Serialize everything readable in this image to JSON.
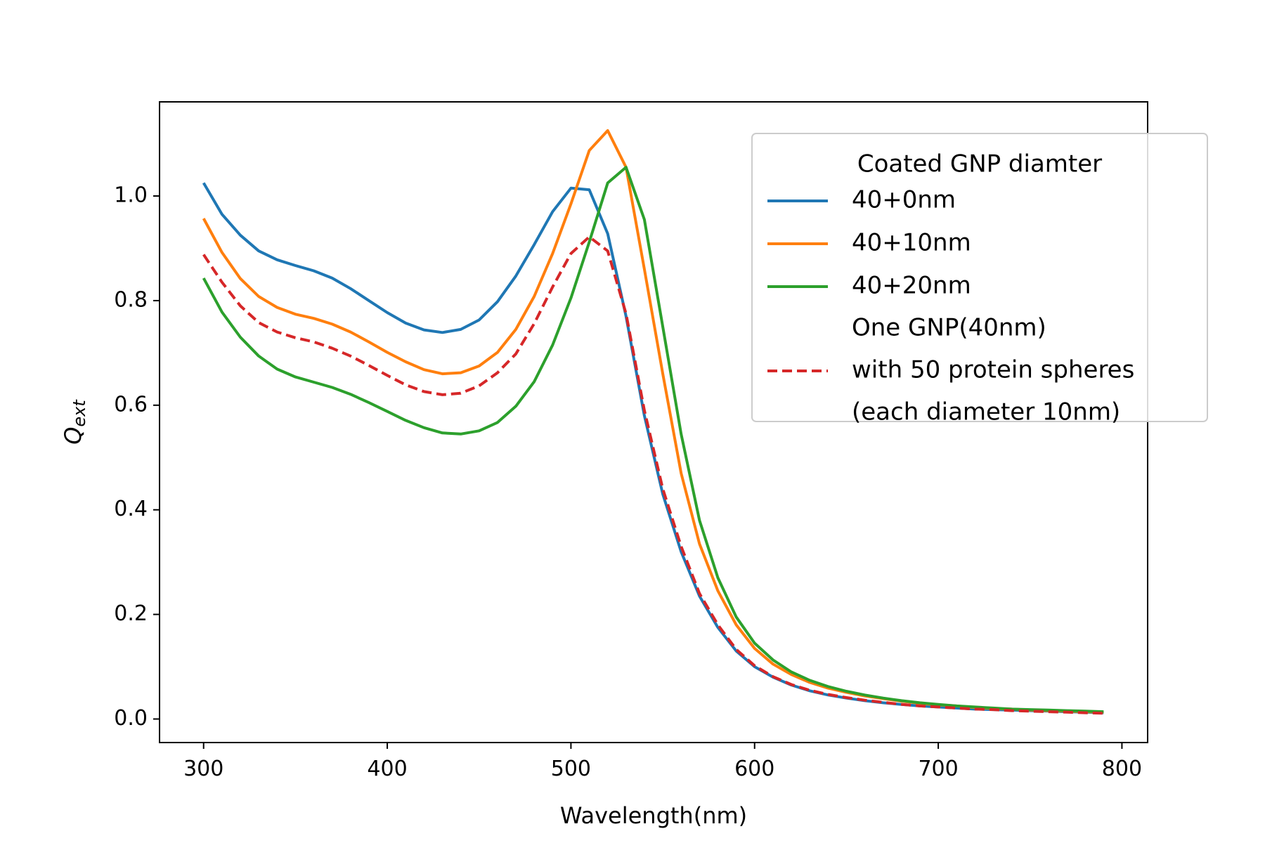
{
  "chart_data": {
    "type": "line",
    "title": "",
    "xlabel": "Wavelength(nm)",
    "ylabel_main": "Q",
    "ylabel_sub": "ext",
    "xlim": [
      276,
      814
    ],
    "ylim": [
      -0.045,
      1.18
    ],
    "xticks": [
      300,
      400,
      500,
      600,
      700,
      800
    ],
    "yticks": [
      0.0,
      0.2,
      0.4,
      0.6,
      0.8,
      1.0
    ],
    "xtick_labels": [
      "300",
      "400",
      "500",
      "600",
      "700",
      "800"
    ],
    "ytick_labels": [
      "0.0",
      "0.2",
      "0.4",
      "0.6",
      "0.8",
      "1.0"
    ],
    "grid": false,
    "legend_title": "Coated GNP diamter",
    "legend_position": "upper-right",
    "x": [
      300,
      310,
      320,
      330,
      340,
      350,
      360,
      370,
      380,
      390,
      400,
      410,
      420,
      430,
      440,
      450,
      460,
      470,
      480,
      490,
      500,
      510,
      520,
      530,
      540,
      550,
      560,
      570,
      580,
      590,
      600,
      610,
      620,
      630,
      640,
      650,
      660,
      670,
      680,
      690,
      700,
      710,
      720,
      730,
      740,
      750,
      760,
      770,
      780,
      790
    ],
    "series": [
      {
        "name": "40+0nm",
        "color": "#1f77b4",
        "dash": "solid",
        "values": [
          1.025,
          0.965,
          0.925,
          0.895,
          0.878,
          0.867,
          0.857,
          0.843,
          0.823,
          0.8,
          0.777,
          0.757,
          0.744,
          0.739,
          0.745,
          0.763,
          0.798,
          0.847,
          0.907,
          0.97,
          1.015,
          1.012,
          0.928,
          0.77,
          0.58,
          0.43,
          0.32,
          0.235,
          0.175,
          0.13,
          0.1,
          0.08,
          0.065,
          0.054,
          0.046,
          0.04,
          0.035,
          0.031,
          0.028,
          0.025,
          0.023,
          0.021,
          0.019,
          0.018,
          0.017,
          0.016,
          0.015,
          0.014,
          0.013,
          0.012
        ]
      },
      {
        "name": "40+10nm",
        "color": "#ff7f0e",
        "dash": "solid",
        "values": [
          0.957,
          0.892,
          0.842,
          0.808,
          0.787,
          0.774,
          0.766,
          0.755,
          0.74,
          0.721,
          0.701,
          0.683,
          0.668,
          0.66,
          0.662,
          0.675,
          0.701,
          0.745,
          0.808,
          0.89,
          0.985,
          1.087,
          1.125,
          1.055,
          0.86,
          0.66,
          0.47,
          0.335,
          0.245,
          0.18,
          0.135,
          0.105,
          0.085,
          0.07,
          0.059,
          0.051,
          0.044,
          0.039,
          0.034,
          0.03,
          0.027,
          0.025,
          0.022,
          0.02,
          0.019,
          0.017,
          0.016,
          0.015,
          0.014,
          0.013
        ]
      },
      {
        "name": "40+20nm",
        "color": "#2ca02c",
        "dash": "solid",
        "values": [
          0.843,
          0.778,
          0.73,
          0.694,
          0.669,
          0.654,
          0.644,
          0.634,
          0.621,
          0.605,
          0.588,
          0.571,
          0.557,
          0.547,
          0.545,
          0.551,
          0.567,
          0.598,
          0.645,
          0.715,
          0.805,
          0.912,
          1.025,
          1.055,
          0.955,
          0.75,
          0.545,
          0.38,
          0.27,
          0.195,
          0.145,
          0.113,
          0.09,
          0.074,
          0.062,
          0.053,
          0.046,
          0.04,
          0.035,
          0.031,
          0.028,
          0.025,
          0.023,
          0.021,
          0.019,
          0.018,
          0.017,
          0.016,
          0.015,
          0.014
        ]
      },
      {
        "name": "One GNP(40nm)\nwith 50 protein spheres\n(each diameter 10nm)",
        "legend_lines": [
          "One GNP(40nm)",
          "with 50 protein spheres",
          "(each diameter 10nm)"
        ],
        "color": "#d62728",
        "dash": "dashed",
        "values": [
          0.888,
          0.835,
          0.79,
          0.758,
          0.74,
          0.729,
          0.721,
          0.709,
          0.694,
          0.676,
          0.657,
          0.639,
          0.626,
          0.62,
          0.623,
          0.637,
          0.662,
          0.698,
          0.756,
          0.826,
          0.89,
          0.922,
          0.895,
          0.775,
          0.59,
          0.44,
          0.33,
          0.24,
          0.18,
          0.133,
          0.102,
          0.081,
          0.066,
          0.055,
          0.047,
          0.041,
          0.036,
          0.032,
          0.028,
          0.025,
          0.023,
          0.021,
          0.019,
          0.018,
          0.016,
          0.015,
          0.014,
          0.013,
          0.012,
          0.011
        ]
      }
    ]
  }
}
